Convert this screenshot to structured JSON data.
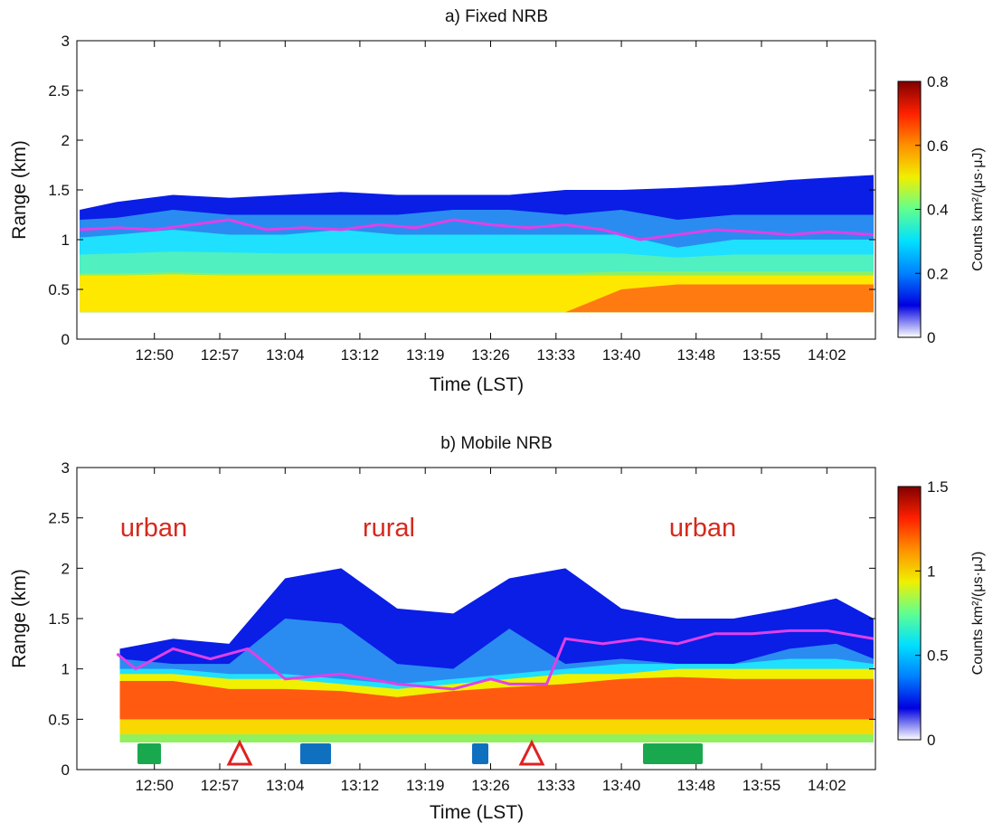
{
  "chart_data": [
    {
      "type": "contour",
      "title": "a) Fixed NRB",
      "xlabel": "Time (LST)",
      "ylabel": "Range (km)",
      "xlim": [
        761.7,
        847.2
      ],
      "xticks": [
        {
          "value": 770,
          "label": "12:50"
        },
        {
          "value": 777,
          "label": "12:57"
        },
        {
          "value": 784,
          "label": "13:04"
        },
        {
          "value": 792,
          "label": "13:12"
        },
        {
          "value": 799,
          "label": "13:19"
        },
        {
          "value": 806,
          "label": "13:26"
        },
        {
          "value": 813,
          "label": "13:33"
        },
        {
          "value": 820,
          "label": "13:40"
        },
        {
          "value": 828,
          "label": "13:48"
        },
        {
          "value": 835,
          "label": "13:55"
        },
        {
          "value": 842,
          "label": "14:02"
        }
      ],
      "ylim": [
        0,
        3
      ],
      "yticks": [
        0,
        0.5,
        1,
        1.5,
        2,
        2.5,
        3
      ],
      "colorbar": {
        "label": "Counts km²/(μs·μJ)",
        "lim": [
          0,
          0.8
        ],
        "ticks": [
          0,
          0.2,
          0.4,
          0.6,
          0.8
        ],
        "colors": [
          "#ffffff",
          "#0000e0",
          "#0080ff",
          "#00e0ff",
          "#60ff90",
          "#f0f000",
          "#ff9000",
          "#ff2000",
          "#800000"
        ]
      },
      "bands": {
        "x": [
          762,
          766,
          772,
          778,
          784,
          790,
          796,
          802,
          808,
          814,
          820,
          826,
          832,
          838,
          847
        ],
        "base": 0.27,
        "layers": [
          {
            "color": "#0a1ee6",
            "top": [
              1.3,
              1.38,
              1.45,
              1.42,
              1.45,
              1.48,
              1.45,
              1.45,
              1.45,
              1.5,
              1.5,
              1.52,
              1.55,
              1.6,
              1.65
            ]
          },
          {
            "color": "#2a8cf0",
            "top": [
              1.2,
              1.22,
              1.3,
              1.25,
              1.25,
              1.25,
              1.25,
              1.3,
              1.3,
              1.25,
              1.3,
              1.2,
              1.25,
              1.25,
              1.25
            ]
          },
          {
            "color": "#20e0ff",
            "top": [
              1.02,
              1.05,
              1.1,
              1.05,
              1.05,
              1.1,
              1.05,
              1.05,
              1.05,
              1.05,
              1.05,
              0.92,
              1.0,
              1.0,
              1.0
            ]
          },
          {
            "color": "#50f0c0",
            "top": [
              0.85,
              0.86,
              0.88,
              0.87,
              0.86,
              0.86,
              0.86,
              0.86,
              0.86,
              0.86,
              0.86,
              0.82,
              0.85,
              0.85,
              0.85
            ]
          },
          {
            "color": "#90f060",
            "top": [
              0.66,
              0.66,
              0.67,
              0.66,
              0.66,
              0.66,
              0.66,
              0.66,
              0.66,
              0.66,
              0.68,
              0.68,
              0.68,
              0.68,
              0.68
            ]
          },
          {
            "color": "#ffe800",
            "top": [
              0.64,
              0.64,
              0.65,
              0.64,
              0.64,
              0.64,
              0.64,
              0.64,
              0.64,
              0.64,
              0.64,
              0.64,
              0.64,
              0.64,
              0.64
            ]
          },
          {
            "color": "#ff7a10",
            "top": [
              0.27,
              0.27,
              0.27,
              0.27,
              0.27,
              0.27,
              0.27,
              0.27,
              0.27,
              0.27,
              0.5,
              0.55,
              0.55,
              0.55,
              0.55
            ]
          }
        ]
      },
      "line": {
        "color": "#e040e8",
        "x": [
          762,
          766,
          770,
          774,
          778,
          782,
          786,
          790,
          794,
          798,
          802,
          806,
          810,
          814,
          818,
          822,
          826,
          830,
          834,
          838,
          842,
          847
        ],
        "y": [
          1.1,
          1.12,
          1.1,
          1.15,
          1.2,
          1.1,
          1.12,
          1.1,
          1.15,
          1.12,
          1.2,
          1.15,
          1.12,
          1.15,
          1.1,
          1.0,
          1.05,
          1.1,
          1.08,
          1.05,
          1.08,
          1.05
        ]
      }
    },
    {
      "type": "contour",
      "title": "b) Mobile NRB",
      "xlabel": "Time (LST)",
      "ylabel": "Range (km)",
      "xlim": [
        761.7,
        847.2
      ],
      "xticks": [
        {
          "value": 770,
          "label": "12:50"
        },
        {
          "value": 777,
          "label": "12:57"
        },
        {
          "value": 784,
          "label": "13:04"
        },
        {
          "value": 792,
          "label": "13:12"
        },
        {
          "value": 799,
          "label": "13:19"
        },
        {
          "value": 806,
          "label": "13:26"
        },
        {
          "value": 813,
          "label": "13:33"
        },
        {
          "value": 820,
          "label": "13:40"
        },
        {
          "value": 828,
          "label": "13:48"
        },
        {
          "value": 835,
          "label": "13:55"
        },
        {
          "value": 842,
          "label": "14:02"
        }
      ],
      "ylim": [
        0,
        3
      ],
      "yticks": [
        0,
        0.5,
        1,
        1.5,
        2,
        2.5,
        3
      ],
      "colorbar": {
        "label": "Counts km²/(μs·μJ)",
        "lim": [
          0,
          1.5
        ],
        "ticks": [
          0,
          0.5,
          1,
          1.5
        ],
        "colors": [
          "#ffffff",
          "#0000e0",
          "#0080ff",
          "#00e0ff",
          "#60ff90",
          "#f0f000",
          "#ff9000",
          "#ff2000",
          "#800000"
        ]
      },
      "annotations": [
        "urban",
        "rural",
        "urban"
      ],
      "bands": {
        "x": [
          766.3,
          772,
          778,
          784,
          790,
          796,
          802,
          808,
          814,
          820,
          826,
          832,
          838,
          843,
          847
        ],
        "base": 0.27,
        "layers": [
          {
            "color": "#0a1ee6",
            "top": [
              1.2,
              1.3,
              1.25,
              1.9,
              2.0,
              1.6,
              1.55,
              1.9,
              2.0,
              1.6,
              1.5,
              1.5,
              1.6,
              1.7,
              1.5
            ]
          },
          {
            "color": "#2a8cf0",
            "top": [
              1.1,
              1.05,
              1.05,
              1.5,
              1.45,
              1.05,
              1.0,
              1.4,
              1.05,
              1.1,
              1.05,
              1.05,
              1.2,
              1.25,
              1.1
            ]
          },
          {
            "color": "#20e0ff",
            "top": [
              1.0,
              1.0,
              0.95,
              0.95,
              0.9,
              0.85,
              0.9,
              0.95,
              1.0,
              1.05,
              1.05,
              1.05,
              1.1,
              1.1,
              1.05
            ]
          },
          {
            "color": "#f0f000",
            "top": [
              0.95,
              0.95,
              0.9,
              0.9,
              0.85,
              0.8,
              0.85,
              0.9,
              0.95,
              0.95,
              1.0,
              1.0,
              1.0,
              1.0,
              1.0
            ]
          },
          {
            "color": "#ff5a10",
            "top": [
              0.88,
              0.88,
              0.8,
              0.8,
              0.78,
              0.72,
              0.78,
              0.82,
              0.85,
              0.9,
              0.92,
              0.9,
              0.9,
              0.9,
              0.9
            ]
          },
          {
            "color": "#f8d800",
            "top": [
              0.5,
              0.5,
              0.5,
              0.5,
              0.5,
              0.5,
              0.5,
              0.5,
              0.5,
              0.5,
              0.5,
              0.5,
              0.5,
              0.5,
              0.5
            ]
          },
          {
            "color": "#90f060",
            "top": [
              0.35,
              0.35,
              0.35,
              0.35,
              0.35,
              0.35,
              0.35,
              0.35,
              0.35,
              0.35,
              0.35,
              0.35,
              0.35,
              0.35,
              0.35
            ]
          }
        ]
      },
      "line": {
        "color": "#e040e8",
        "x": [
          766,
          768,
          772,
          776,
          780,
          784,
          790,
          796,
          802,
          806,
          808,
          812,
          814,
          818,
          822,
          826,
          830,
          834,
          838,
          842,
          847
        ],
        "y": [
          1.15,
          1.0,
          1.2,
          1.1,
          1.2,
          0.9,
          0.95,
          0.85,
          0.8,
          0.9,
          0.85,
          0.85,
          1.3,
          1.25,
          1.3,
          1.25,
          1.35,
          1.35,
          1.38,
          1.38,
          1.3
        ]
      }
    }
  ]
}
